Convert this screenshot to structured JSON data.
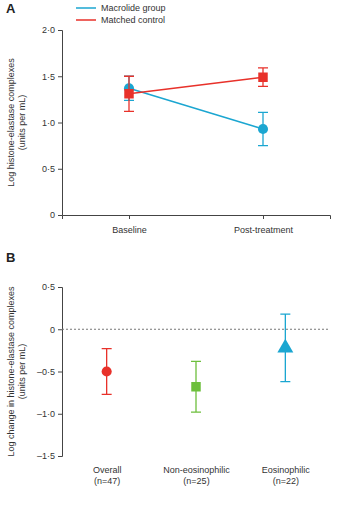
{
  "chart_data": [
    {
      "type": "line",
      "title": "A",
      "y_label": "Log histone-elastase complexes\n(units per mL)",
      "categories": [
        "Baseline",
        "Post-treatment"
      ],
      "series": [
        {
          "name": "Macrolide group",
          "color": "#1ba6d1",
          "marker": "circle",
          "values": [
            1.37,
            0.93
          ],
          "errors": [
            0.13,
            0.18
          ]
        },
        {
          "name": "Matched control",
          "color": "#e8312a",
          "marker": "square",
          "values": [
            1.31,
            1.49
          ],
          "errors": [
            0.19,
            0.1
          ]
        }
      ],
      "ylim": [
        0,
        2.0
      ],
      "yticks": [
        0,
        {
          "value": 0.5,
          "label": "0·5"
        },
        {
          "value": 1.0,
          "label": "1·0"
        },
        {
          "value": 1.5,
          "label": "1·5"
        },
        {
          "value": 2.0,
          "label": "2·0"
        }
      ],
      "legend": "top-left"
    },
    {
      "type": "scatter",
      "title": "B",
      "y_label": "Log change in histone-elastase complexes\n(units per mL)",
      "categories": [
        "Overall\n(n=47)",
        "Non-eosinophilic\n(n=25)",
        "Eosinophilic\n(n=22)"
      ],
      "values": [
        -0.5,
        -0.68,
        -0.22
      ],
      "errors": [
        0.27,
        0.3,
        0.4
      ],
      "colors": [
        "#e8312a",
        "#6dbf3c",
        "#1ba6d1"
      ],
      "markers": [
        "circle",
        "square",
        "triangle"
      ],
      "reference_line": 0,
      "ylim": [
        -1.5,
        0.5
      ],
      "yticks": [
        {
          "value": -1.5,
          "label": "–1·5"
        },
        {
          "value": -1.0,
          "label": "–1·0"
        },
        {
          "value": -0.5,
          "label": "–0·5"
        },
        0,
        {
          "value": 0.5,
          "label": "0·5"
        }
      ]
    }
  ]
}
